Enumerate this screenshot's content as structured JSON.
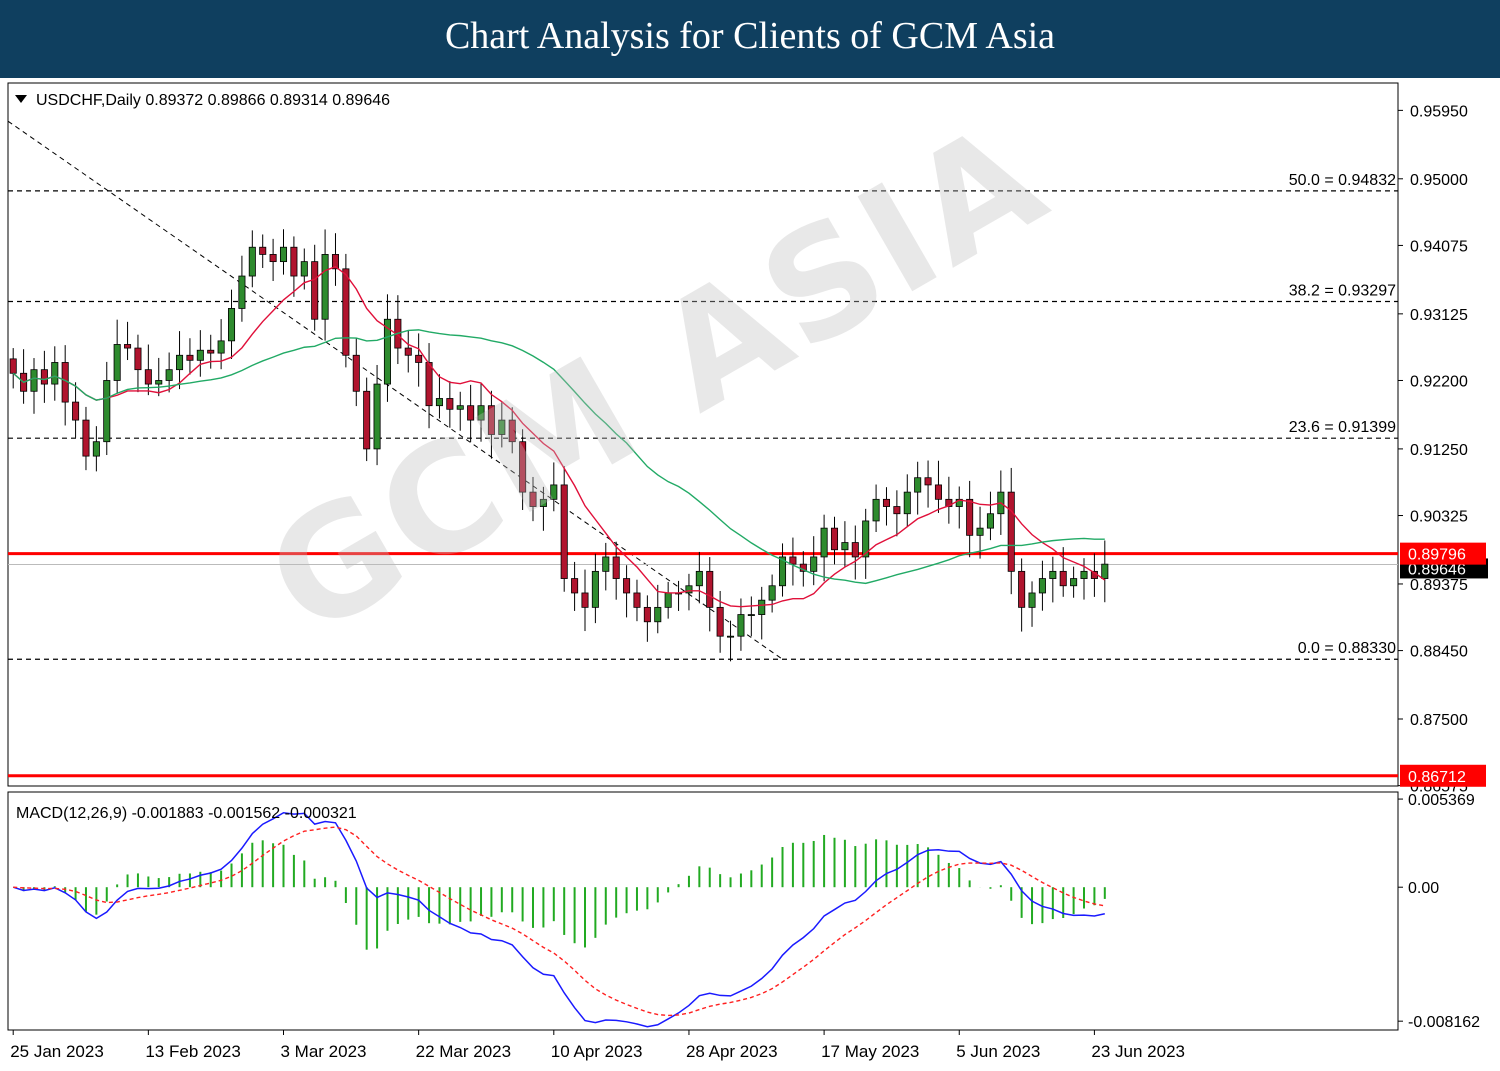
{
  "banner": {
    "title": "Chart Analysis for Clients of GCM Asia"
  },
  "chart_data": [
    {
      "type": "candlestick",
      "header": "USDCHF,Daily  0.89372 0.89866 0.89314 0.89646",
      "symbol": "USDCHF",
      "timeframe": "Daily",
      "ohlc_last": {
        "open": 0.89372,
        "high": 0.89866,
        "low": 0.89314,
        "close": 0.89646
      },
      "ylim": [
        0.8657,
        0.9633
      ],
      "y_ticks": [
        "0.95950",
        "0.95000",
        "0.94075",
        "0.93125",
        "0.92200",
        "0.91250",
        "0.90325",
        "0.89375",
        "0.88450",
        "0.87500",
        "0.86575"
      ],
      "y_tick_values": [
        0.9595,
        0.95,
        0.94075,
        0.93125,
        0.922,
        0.9125,
        0.90325,
        0.89375,
        0.8845,
        0.875,
        0.86575
      ],
      "x_labels": [
        "25 Jan 2023",
        "13 Feb 2023",
        "3 Mar 2023",
        "22 Mar 2023",
        "10 Apr 2023",
        "28 Apr 2023",
        "17 May 2023",
        "5 Jun 2023",
        "23 Jun 2023"
      ],
      "x_label_index": [
        0,
        13,
        26,
        39,
        52,
        65,
        78,
        91,
        104
      ],
      "fibonacci": [
        {
          "label": "50.0 = 0.94832",
          "value": 0.94832
        },
        {
          "label": "38.2 = 0.93297",
          "value": 0.93297
        },
        {
          "label": "23.6 = 0.91399",
          "value": 0.91399
        },
        {
          "label": "0.0 = 0.88330",
          "value": 0.8833
        }
      ],
      "levels": [
        {
          "label": "0.89796",
          "value": 0.89796,
          "color": "#ff0000"
        },
        {
          "label": "0.86712",
          "value": 0.86712,
          "color": "#ff0000"
        }
      ],
      "current_price": {
        "label": "0.89646",
        "value": 0.89646
      },
      "trendline": {
        "from": [
          0,
          0.958
        ],
        "to": [
          74,
          0.8833
        ]
      },
      "closes": [
        0.923,
        0.9205,
        0.9235,
        0.9215,
        0.9245,
        0.919,
        0.9165,
        0.9115,
        0.9135,
        0.922,
        0.927,
        0.9265,
        0.9235,
        0.9215,
        0.922,
        0.9235,
        0.9255,
        0.9248,
        0.9262,
        0.9258,
        0.9275,
        0.932,
        0.9365,
        0.9405,
        0.9395,
        0.9385,
        0.9405,
        0.9365,
        0.9385,
        0.9305,
        0.9395,
        0.9375,
        0.9255,
        0.9205,
        0.9125,
        0.9215,
        0.9305,
        0.9265,
        0.9255,
        0.9245,
        0.9185,
        0.9195,
        0.918,
        0.9185,
        0.9165,
        0.9185,
        0.9145,
        0.9165,
        0.9135,
        0.9065,
        0.9045,
        0.9055,
        0.9075,
        0.8945,
        0.8925,
        0.8905,
        0.8955,
        0.8975,
        0.8945,
        0.8925,
        0.8905,
        0.8885,
        0.8905,
        0.8925,
        0.8925,
        0.8935,
        0.8955,
        0.8905,
        0.8865,
        0.8865,
        0.8895,
        0.8895,
        0.8915,
        0.8935,
        0.8975,
        0.8965,
        0.8955,
        0.8975,
        0.9015,
        0.8985,
        0.8995,
        0.8975,
        0.9025,
        0.9055,
        0.9045,
        0.9035,
        0.9065,
        0.9085,
        0.9075,
        0.9055,
        0.9045,
        0.9055,
        0.9005,
        0.9015,
        0.9035,
        0.9065,
        0.8955,
        0.8905,
        0.8925,
        0.8945,
        0.8955,
        0.8935,
        0.8945,
        0.8955,
        0.8945,
        0.8965
      ],
      "indicators": [
        {
          "name": "Moving average 20",
          "color": "#e0103a"
        },
        {
          "name": "Moving average 50",
          "color": "#22aa66"
        }
      ]
    },
    {
      "type": "macd",
      "header": "MACD(12,26,9) -0.001883 -0.001562 -0.000321",
      "params": "MACD(12,26,9)",
      "values": {
        "macd": -0.001883,
        "signal": -0.001562,
        "histogram": -0.000321
      },
      "ylim": [
        -0.0087,
        0.0058
      ],
      "y_ticks": [
        "0.005369",
        "0.00",
        "-0.008162"
      ],
      "y_tick_values": [
        0.005369,
        0,
        -0.008162
      ],
      "series": [
        {
          "name": "MACD",
          "color": "#1a1aff",
          "style": "solid"
        },
        {
          "name": "Signal",
          "color": "#ff2020",
          "style": "dashed"
        },
        {
          "name": "Histogram",
          "color": "#22aa22",
          "style": "bars"
        }
      ]
    }
  ],
  "watermark": "GCM ASIA"
}
